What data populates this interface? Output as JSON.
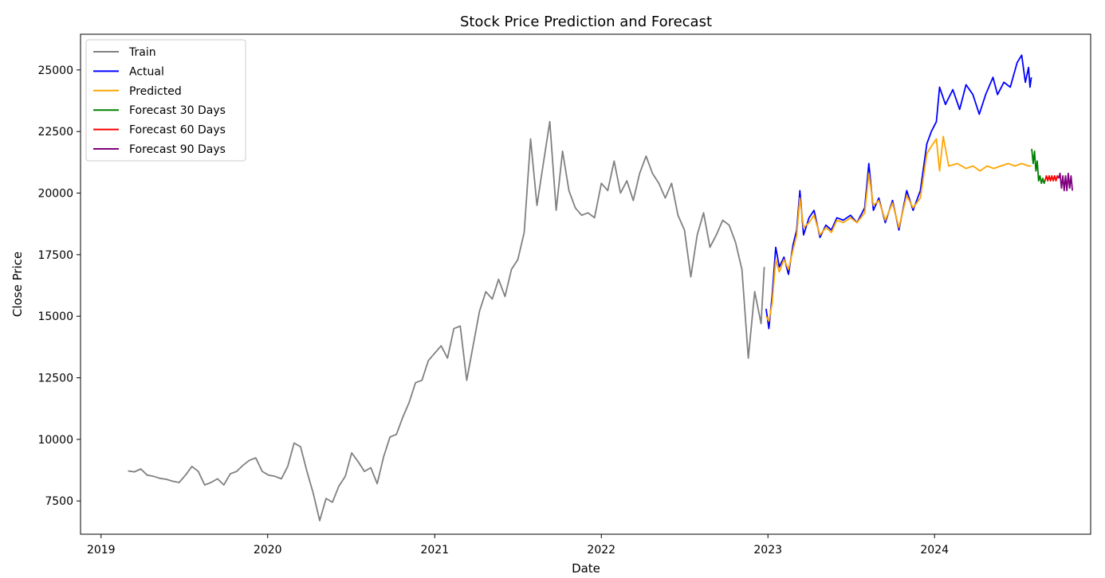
{
  "chart_data": {
    "type": "line",
    "title": "Stock Price Prediction and Forecast",
    "xlabel": "Date",
    "ylabel": "Close Price",
    "xlim": [
      "2018-11-17",
      "2024-12-08"
    ],
    "ylim": [
      6150,
      26450
    ],
    "x_ticks": [
      {
        "date": "2019-01-01",
        "label": "2019"
      },
      {
        "date": "2020-01-01",
        "label": "2020"
      },
      {
        "date": "2021-01-01",
        "label": "2021"
      },
      {
        "date": "2022-01-01",
        "label": "2022"
      },
      {
        "date": "2023-01-01",
        "label": "2023"
      },
      {
        "date": "2024-01-01",
        "label": "2024"
      }
    ],
    "y_ticks": [
      7500,
      10000,
      12500,
      15000,
      17500,
      20000,
      22500,
      25000
    ],
    "grid": false,
    "legend": "upper-left",
    "series": [
      {
        "name": "Train",
        "color": "#808080",
        "points": [
          [
            "2019-03-01",
            8720
          ],
          [
            "2019-03-15",
            8680
          ],
          [
            "2019-03-29",
            8800
          ],
          [
            "2019-04-12",
            8550
          ],
          [
            "2019-04-26",
            8500
          ],
          [
            "2019-05-10",
            8420
          ],
          [
            "2019-05-24",
            8380
          ],
          [
            "2019-06-07",
            8300
          ],
          [
            "2019-06-21",
            8250
          ],
          [
            "2019-07-05",
            8550
          ],
          [
            "2019-07-19",
            8900
          ],
          [
            "2019-08-02",
            8700
          ],
          [
            "2019-08-16",
            8150
          ],
          [
            "2019-08-30",
            8250
          ],
          [
            "2019-09-13",
            8400
          ],
          [
            "2019-09-27",
            8150
          ],
          [
            "2019-10-11",
            8600
          ],
          [
            "2019-10-25",
            8700
          ],
          [
            "2019-11-08",
            8950
          ],
          [
            "2019-11-22",
            9150
          ],
          [
            "2019-12-06",
            9250
          ],
          [
            "2019-12-20",
            8700
          ],
          [
            "2020-01-03",
            8550
          ],
          [
            "2020-01-17",
            8500
          ],
          [
            "2020-01-31",
            8400
          ],
          [
            "2020-02-14",
            8900
          ],
          [
            "2020-02-28",
            9850
          ],
          [
            "2020-03-13",
            9700
          ],
          [
            "2020-03-27",
            8700
          ],
          [
            "2020-04-10",
            7800
          ],
          [
            "2020-04-24",
            6700
          ],
          [
            "2020-05-08",
            7600
          ],
          [
            "2020-05-22",
            7450
          ],
          [
            "2020-06-05",
            8100
          ],
          [
            "2020-06-19",
            8500
          ],
          [
            "2020-07-03",
            9450
          ],
          [
            "2020-07-17",
            9100
          ],
          [
            "2020-07-31",
            8700
          ],
          [
            "2020-08-14",
            8850
          ],
          [
            "2020-08-28",
            8200
          ],
          [
            "2020-09-11",
            9300
          ],
          [
            "2020-09-25",
            10100
          ],
          [
            "2020-10-09",
            10200
          ],
          [
            "2020-10-23",
            10900
          ],
          [
            "2020-11-06",
            11500
          ],
          [
            "2020-11-20",
            12300
          ],
          [
            "2020-12-04",
            12400
          ],
          [
            "2020-12-18",
            13200
          ],
          [
            "2021-01-01",
            13500
          ],
          [
            "2021-01-15",
            13800
          ],
          [
            "2021-01-29",
            13300
          ],
          [
            "2021-02-12",
            14500
          ],
          [
            "2021-02-26",
            14600
          ],
          [
            "2021-03-12",
            12400
          ],
          [
            "2021-03-26",
            13800
          ],
          [
            "2021-04-09",
            15200
          ],
          [
            "2021-04-23",
            16000
          ],
          [
            "2021-05-07",
            15700
          ],
          [
            "2021-05-21",
            16500
          ],
          [
            "2021-06-04",
            15800
          ],
          [
            "2021-06-18",
            16900
          ],
          [
            "2021-07-02",
            17300
          ],
          [
            "2021-07-16",
            18400
          ],
          [
            "2021-07-30",
            22200
          ],
          [
            "2021-08-13",
            19500
          ],
          [
            "2021-08-27",
            21200
          ],
          [
            "2021-09-10",
            22900
          ],
          [
            "2021-09-24",
            19300
          ],
          [
            "2021-10-08",
            21700
          ],
          [
            "2021-10-22",
            20100
          ],
          [
            "2021-11-05",
            19400
          ],
          [
            "2021-11-19",
            19100
          ],
          [
            "2021-12-03",
            19200
          ],
          [
            "2021-12-17",
            19000
          ],
          [
            "2022-01-01",
            20400
          ],
          [
            "2022-01-15",
            20100
          ],
          [
            "2022-01-29",
            21300
          ],
          [
            "2022-02-12",
            20000
          ],
          [
            "2022-02-26",
            20500
          ],
          [
            "2022-03-12",
            19700
          ],
          [
            "2022-03-26",
            20800
          ],
          [
            "2022-04-09",
            21500
          ],
          [
            "2022-04-23",
            20800
          ],
          [
            "2022-05-07",
            20400
          ],
          [
            "2022-05-21",
            19800
          ],
          [
            "2022-06-04",
            20400
          ],
          [
            "2022-06-18",
            19100
          ],
          [
            "2022-07-02",
            18500
          ],
          [
            "2022-07-16",
            16600
          ],
          [
            "2022-07-30",
            18300
          ],
          [
            "2022-08-13",
            19200
          ],
          [
            "2022-08-27",
            17800
          ],
          [
            "2022-09-10",
            18300
          ],
          [
            "2022-09-24",
            18900
          ],
          [
            "2022-10-08",
            18700
          ],
          [
            "2022-10-22",
            18000
          ],
          [
            "2022-11-05",
            16900
          ],
          [
            "2022-11-19",
            13300
          ],
          [
            "2022-12-03",
            16000
          ],
          [
            "2022-12-17",
            14700
          ],
          [
            "2022-12-24",
            17000
          ]
        ]
      },
      {
        "name": "Actual",
        "color": "#0000ff",
        "points": [
          [
            "2022-12-28",
            15300
          ],
          [
            "2023-01-03",
            14500
          ],
          [
            "2023-01-10",
            15800
          ],
          [
            "2023-01-18",
            17800
          ],
          [
            "2023-01-26",
            17000
          ],
          [
            "2023-02-05",
            17400
          ],
          [
            "2023-02-15",
            16700
          ],
          [
            "2023-02-25",
            17900
          ],
          [
            "2023-03-05",
            18500
          ],
          [
            "2023-03-12",
            20100
          ],
          [
            "2023-03-20",
            18300
          ],
          [
            "2023-04-01",
            19000
          ],
          [
            "2023-04-12",
            19300
          ],
          [
            "2023-04-25",
            18200
          ],
          [
            "2023-05-08",
            18700
          ],
          [
            "2023-05-20",
            18500
          ],
          [
            "2023-06-01",
            19000
          ],
          [
            "2023-06-15",
            18900
          ],
          [
            "2023-07-01",
            19100
          ],
          [
            "2023-07-15",
            18800
          ],
          [
            "2023-08-01",
            19400
          ],
          [
            "2023-08-10",
            21200
          ],
          [
            "2023-08-20",
            19300
          ],
          [
            "2023-09-01",
            19800
          ],
          [
            "2023-09-15",
            18800
          ],
          [
            "2023-10-01",
            19700
          ],
          [
            "2023-10-15",
            18500
          ],
          [
            "2023-11-01",
            20100
          ],
          [
            "2023-11-15",
            19300
          ],
          [
            "2023-12-01",
            20100
          ],
          [
            "2023-12-15",
            22000
          ],
          [
            "2023-12-25",
            22500
          ],
          [
            "2024-01-05",
            22900
          ],
          [
            "2024-01-12",
            24300
          ],
          [
            "2024-01-25",
            23600
          ],
          [
            "2024-02-10",
            24200
          ],
          [
            "2024-02-25",
            23400
          ],
          [
            "2024-03-10",
            24400
          ],
          [
            "2024-03-25",
            24000
          ],
          [
            "2024-04-08",
            23200
          ],
          [
            "2024-04-22",
            24000
          ],
          [
            "2024-05-08",
            24700
          ],
          [
            "2024-05-18",
            24000
          ],
          [
            "2024-06-01",
            24500
          ],
          [
            "2024-06-15",
            24300
          ],
          [
            "2024-06-30",
            25300
          ],
          [
            "2024-07-10",
            25600
          ],
          [
            "2024-07-18",
            24500
          ],
          [
            "2024-07-25",
            25100
          ],
          [
            "2024-07-28",
            24300
          ],
          [
            "2024-07-31",
            24700
          ]
        ]
      },
      {
        "name": "Predicted",
        "color": "#ffa500",
        "points": [
          [
            "2022-12-28",
            15000
          ],
          [
            "2023-01-03",
            14800
          ],
          [
            "2023-01-10",
            15500
          ],
          [
            "2023-01-18",
            17300
          ],
          [
            "2023-01-26",
            16800
          ],
          [
            "2023-02-05",
            17300
          ],
          [
            "2023-02-15",
            16900
          ],
          [
            "2023-02-25",
            17700
          ],
          [
            "2023-03-05",
            18300
          ],
          [
            "2023-03-12",
            19800
          ],
          [
            "2023-03-20",
            18600
          ],
          [
            "2023-04-01",
            18800
          ],
          [
            "2023-04-12",
            19100
          ],
          [
            "2023-04-25",
            18300
          ],
          [
            "2023-05-08",
            18600
          ],
          [
            "2023-05-20",
            18400
          ],
          [
            "2023-06-01",
            18900
          ],
          [
            "2023-06-15",
            18800
          ],
          [
            "2023-07-01",
            19000
          ],
          [
            "2023-07-15",
            18800
          ],
          [
            "2023-08-01",
            19200
          ],
          [
            "2023-08-10",
            20800
          ],
          [
            "2023-08-20",
            19500
          ],
          [
            "2023-09-01",
            19700
          ],
          [
            "2023-09-15",
            18900
          ],
          [
            "2023-10-01",
            19600
          ],
          [
            "2023-10-15",
            18600
          ],
          [
            "2023-11-01",
            19900
          ],
          [
            "2023-11-15",
            19400
          ],
          [
            "2023-12-01",
            19800
          ],
          [
            "2023-12-15",
            21600
          ],
          [
            "2023-12-25",
            21900
          ],
          [
            "2024-01-05",
            22200
          ],
          [
            "2024-01-12",
            20900
          ],
          [
            "2024-01-20",
            22300
          ],
          [
            "2024-02-01",
            21100
          ],
          [
            "2024-02-20",
            21200
          ],
          [
            "2024-03-10",
            21000
          ],
          [
            "2024-03-25",
            21100
          ],
          [
            "2024-04-10",
            20900
          ],
          [
            "2024-04-25",
            21100
          ],
          [
            "2024-05-10",
            21000
          ],
          [
            "2024-05-25",
            21100
          ],
          [
            "2024-06-10",
            21200
          ],
          [
            "2024-06-25",
            21100
          ],
          [
            "2024-07-10",
            21200
          ],
          [
            "2024-07-25",
            21100
          ],
          [
            "2024-07-31",
            21100
          ]
        ]
      },
      {
        "name": "Forecast 30 Days",
        "color": "#008000",
        "points": [
          [
            "2024-08-01",
            21800
          ],
          [
            "2024-08-04",
            21200
          ],
          [
            "2024-08-07",
            21700
          ],
          [
            "2024-08-10",
            20900
          ],
          [
            "2024-08-13",
            21300
          ],
          [
            "2024-08-16",
            20500
          ],
          [
            "2024-08-19",
            20700
          ],
          [
            "2024-08-22",
            20400
          ],
          [
            "2024-08-25",
            20600
          ],
          [
            "2024-08-28",
            20400
          ],
          [
            "2024-08-30",
            20500
          ]
        ]
      },
      {
        "name": "Forecast 60 Days",
        "color": "#ff0000",
        "points": [
          [
            "2024-08-30",
            20500
          ],
          [
            "2024-09-02",
            20700
          ],
          [
            "2024-09-05",
            20500
          ],
          [
            "2024-09-08",
            20700
          ],
          [
            "2024-09-11",
            20500
          ],
          [
            "2024-09-14",
            20700
          ],
          [
            "2024-09-17",
            20500
          ],
          [
            "2024-09-20",
            20700
          ],
          [
            "2024-09-23",
            20500
          ],
          [
            "2024-09-26",
            20700
          ],
          [
            "2024-09-29",
            20600
          ]
        ]
      },
      {
        "name": "Forecast 90 Days",
        "color": "#800080",
        "points": [
          [
            "2024-09-29",
            20600
          ],
          [
            "2024-10-02",
            20800
          ],
          [
            "2024-10-05",
            20200
          ],
          [
            "2024-10-08",
            20700
          ],
          [
            "2024-10-11",
            20100
          ],
          [
            "2024-10-14",
            20700
          ],
          [
            "2024-10-17",
            20100
          ],
          [
            "2024-10-20",
            20800
          ],
          [
            "2024-10-23",
            20200
          ],
          [
            "2024-10-26",
            20700
          ],
          [
            "2024-10-29",
            20100
          ]
        ]
      }
    ]
  }
}
